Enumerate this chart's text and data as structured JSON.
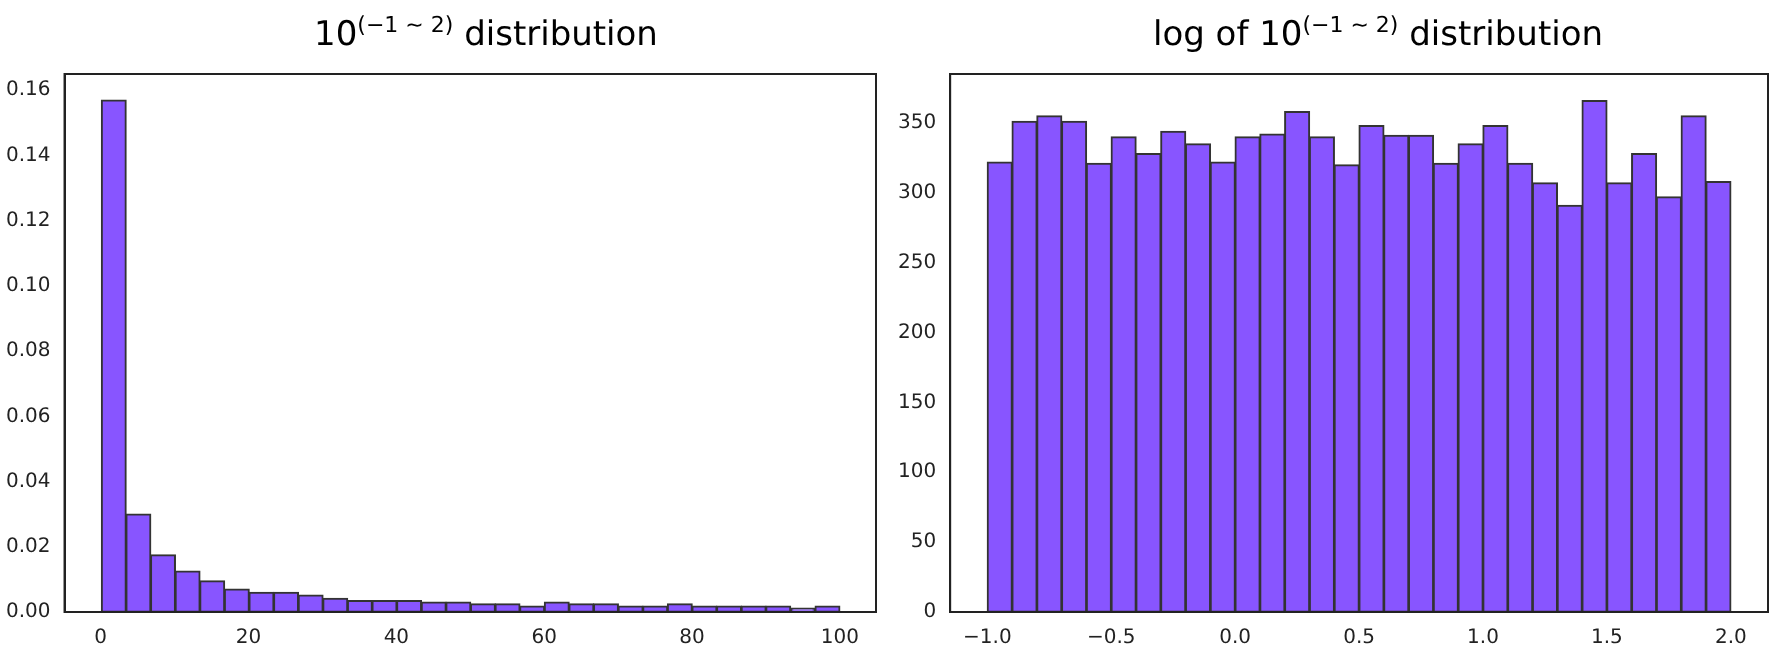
{
  "chart_data": [
    {
      "type": "histogram",
      "title": "10$^{(−1 ~ 2)}$ distribution",
      "color": "#8855ff",
      "bins": [
        0.1,
        3.43,
        6.76,
        10.09,
        13.42,
        16.75,
        20.08,
        23.41,
        26.74,
        30.07,
        33.4,
        36.73,
        40.06,
        43.39,
        46.72,
        50.05,
        53.38,
        56.71,
        60.04,
        63.37,
        66.7,
        70.03,
        73.36,
        76.69,
        80.02,
        83.35,
        86.68,
        90.01,
        93.34,
        96.67,
        100
      ],
      "values": [
        0.157,
        0.03,
        0.0175,
        0.0125,
        0.0095,
        0.007,
        0.006,
        0.006,
        0.0052,
        0.0042,
        0.0035,
        0.0035,
        0.0035,
        0.003,
        0.003,
        0.0025,
        0.0025,
        0.0018,
        0.003,
        0.0025,
        0.0025,
        0.0018,
        0.0018,
        0.0025,
        0.0018,
        0.0018,
        0.0018,
        0.0018,
        0.0012,
        0.0018
      ],
      "xlim": [
        -4.9,
        104.9
      ],
      "xticks": [
        0,
        20,
        40,
        60,
        80,
        100
      ],
      "ylim": [
        0,
        0.165
      ],
      "yticks": [
        {
          "value": 0,
          "label": "0.00"
        },
        {
          "value": 0.02,
          "label": "0.02"
        },
        {
          "value": 0.04,
          "label": "0.04"
        },
        {
          "value": 0.06,
          "label": "0.06"
        },
        {
          "value": 0.08,
          "label": "0.08"
        },
        {
          "value": 0.1,
          "label": "0.10"
        },
        {
          "value": 0.12,
          "label": "0.12"
        },
        {
          "value": 0.14,
          "label": "0.14"
        },
        {
          "value": 0.16,
          "label": "0.16"
        }
      ],
      "grid": false,
      "legend": false
    },
    {
      "type": "histogram",
      "title": "log of 10$^{(−1 ~ 2)}$ distribution",
      "color": "#8855ff",
      "bins": [
        -1.0,
        -0.9,
        -0.8,
        -0.7,
        -0.6,
        -0.5,
        -0.4,
        -0.3,
        -0.2,
        -0.1,
        0.0,
        0.1,
        0.2,
        0.3,
        0.4,
        0.5,
        0.6,
        0.7,
        0.8,
        0.9,
        1.0,
        1.1,
        1.2,
        1.3,
        1.4,
        1.5,
        1.6,
        1.7,
        1.8,
        1.9,
        2.0
      ],
      "values": [
        322,
        351,
        355,
        351,
        321,
        340,
        328,
        344,
        335,
        322,
        340,
        342,
        358,
        340,
        320,
        348,
        341,
        341,
        321,
        335,
        348,
        321,
        307,
        291,
        366,
        307,
        328,
        297,
        355,
        308
      ],
      "xlim": [
        -1.15,
        2.15
      ],
      "xticks": [
        {
          "value": -1,
          "label": "−1.0"
        },
        {
          "value": -0.5,
          "label": "−0.5"
        },
        {
          "value": 0,
          "label": "0.0"
        },
        {
          "value": 0.5,
          "label": "0.5"
        },
        {
          "value": 1,
          "label": "1.0"
        },
        {
          "value": 1.5,
          "label": "1.5"
        },
        {
          "value": 2,
          "label": "2.0"
        }
      ],
      "ylim": [
        0,
        385
      ],
      "yticks": [
        0,
        50,
        100,
        150,
        200,
        250,
        300,
        350
      ],
      "grid": false,
      "legend": false
    }
  ]
}
